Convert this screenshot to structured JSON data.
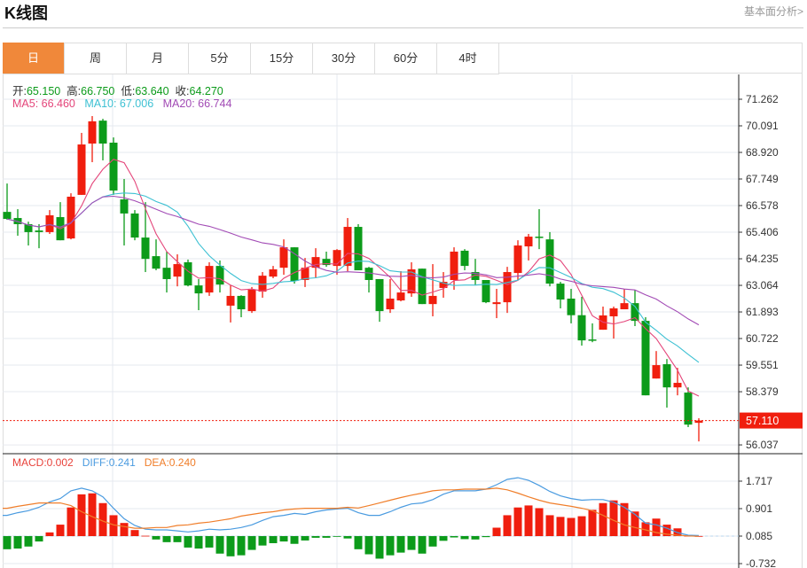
{
  "header": {
    "title": "K线图",
    "fundamental_link": "基本面分析>"
  },
  "tabs": [
    {
      "label": "日",
      "active": true
    },
    {
      "label": "周"
    },
    {
      "label": "月"
    },
    {
      "label": "5分"
    },
    {
      "label": "15分"
    },
    {
      "label": "30分"
    },
    {
      "label": "60分"
    },
    {
      "label": "4时"
    }
  ],
  "ohlc_info": {
    "open_label": "开:",
    "open": "65.150",
    "high_label": "高:",
    "high": "66.750",
    "low_label": "低:",
    "low": "63.640",
    "close_label": "收:",
    "close": "64.270"
  },
  "ma_info": {
    "ma5": "MA5: 66.460",
    "ma10": "MA10: 67.006",
    "ma20": "MA20: 66.744"
  },
  "macd_info": {
    "macd": "MACD:0.002",
    "diff": "DIFF:0.241",
    "dea": "DEA:0.240"
  },
  "colors": {
    "up": "#F01E0E",
    "down": "#0C9B1A",
    "accent": "#F0883A",
    "ma5": "#E4457A",
    "ma10": "#3EC1D3",
    "ma20": "#A24BB5",
    "diff": "#4A9BE0",
    "dea": "#F07E2A"
  },
  "chart_data": [
    {
      "type": "candlestick",
      "price_axis_ticks": [
        "71.262",
        "70.091",
        "68.920",
        "67.749",
        "66.578",
        "65.406",
        "64.235",
        "63.064",
        "61.893",
        "60.722",
        "59.551",
        "58.379",
        "56.037"
      ],
      "ylim": [
        56.037,
        71.262
      ],
      "last_price": "57.110",
      "moving_averages": [
        5,
        10,
        20
      ],
      "ohlc": [
        [
          66.3,
          67.55,
          65.95,
          65.99
        ],
        [
          66.03,
          66.42,
          65.25,
          65.76
        ],
        [
          65.76,
          65.87,
          64.82,
          65.41
        ],
        [
          65.48,
          65.76,
          64.7,
          65.41
        ],
        [
          65.41,
          66.38,
          65.33,
          66.15
        ],
        [
          66.07,
          66.73,
          65.05,
          65.05
        ],
        [
          65.13,
          67.12,
          65.09,
          66.97
        ],
        [
          67.05,
          69.78,
          67.05,
          69.27
        ],
        [
          69.31,
          70.52,
          68.49,
          70.29
        ],
        [
          70.32,
          70.4,
          68.57,
          69.31
        ],
        [
          69.35,
          69.58,
          67.05,
          67.24
        ],
        [
          66.85,
          67.75,
          64.82,
          66.23
        ],
        [
          66.23,
          66.38,
          65.05,
          65.17
        ],
        [
          65.17,
          66.73,
          63.65,
          64.23
        ],
        [
          64.35,
          65.09,
          63.73,
          63.8
        ],
        [
          63.84,
          64.55,
          62.75,
          63.34
        ],
        [
          63.45,
          64.43,
          63.02,
          64.0
        ],
        [
          64.08,
          64.2,
          63.02,
          63.06
        ],
        [
          63.06,
          63.34,
          61.97,
          62.71
        ],
        [
          62.75,
          64.08,
          62.6,
          63.92
        ],
        [
          63.92,
          64.16,
          62.75,
          63.1
        ],
        [
          62.17,
          63.06,
          61.43,
          62.6
        ],
        [
          62.6,
          62.63,
          61.66,
          62.01
        ],
        [
          61.93,
          62.99,
          61.85,
          62.87
        ],
        [
          62.79,
          63.65,
          62.52,
          63.49
        ],
        [
          63.45,
          63.92,
          63.38,
          63.77
        ],
        [
          63.84,
          65.09,
          63.53,
          64.74
        ],
        [
          64.74,
          64.74,
          63.14,
          63.26
        ],
        [
          63.3,
          64.27,
          62.99,
          63.84
        ],
        [
          63.84,
          64.7,
          63.38,
          64.31
        ],
        [
          64.23,
          64.55,
          63.88,
          63.96
        ],
        [
          63.92,
          64.66,
          63.53,
          64.62
        ],
        [
          63.92,
          66.03,
          63.69,
          65.64
        ],
        [
          65.64,
          65.76,
          63.73,
          63.73
        ],
        [
          63.84,
          63.88,
          62.75,
          63.3
        ],
        [
          63.34,
          63.34,
          61.46,
          61.93
        ],
        [
          62.01,
          63.34,
          61.85,
          62.48
        ],
        [
          62.4,
          63.69,
          62.36,
          62.75
        ],
        [
          62.71,
          64.08,
          62.56,
          63.77
        ],
        [
          63.8,
          63.8,
          62.24,
          62.24
        ],
        [
          62.24,
          64.0,
          61.7,
          62.6
        ],
        [
          62.95,
          63.65,
          62.52,
          63.22
        ],
        [
          63.3,
          64.74,
          62.87,
          64.55
        ],
        [
          64.59,
          64.66,
          63.73,
          63.92
        ],
        [
          63.65,
          64.23,
          63.06,
          63.3
        ],
        [
          63.3,
          63.3,
          62.28,
          62.32
        ],
        [
          62.24,
          62.91,
          61.62,
          62.32
        ],
        [
          62.32,
          63.88,
          61.85,
          63.65
        ],
        [
          63.61,
          65.05,
          63.3,
          64.82
        ],
        [
          64.78,
          65.33,
          64.16,
          65.21
        ],
        [
          65.21,
          66.42,
          64.66,
          65.17
        ],
        [
          65.09,
          65.41,
          63.02,
          63.14
        ],
        [
          63.14,
          63.22,
          62.05,
          62.44
        ],
        [
          62.48,
          62.91,
          61.39,
          61.75
        ],
        [
          61.75,
          62.56,
          60.41,
          60.64
        ],
        [
          60.68,
          61.39,
          60.56,
          60.64
        ],
        [
          61.11,
          62.13,
          61.11,
          61.74
        ],
        [
          61.7,
          62.13,
          60.72,
          62.05
        ],
        [
          62.01,
          62.91,
          62.01,
          62.28
        ],
        [
          62.28,
          62.87,
          61.27,
          61.5
        ],
        [
          61.5,
          61.66,
          58.22,
          58.22
        ],
        [
          58.96,
          60.17,
          58.96,
          59.55
        ],
        [
          59.59,
          59.82,
          57.68,
          58.57
        ],
        [
          58.57,
          59.43,
          58.22,
          58.77
        ],
        [
          58.34,
          58.57,
          56.82,
          56.93
        ],
        [
          57.01,
          57.21,
          56.19,
          57.11
        ]
      ]
    },
    {
      "type": "bar+line",
      "axis_ticks": [
        "1.717",
        "0.901",
        "0.085",
        "-0.732"
      ],
      "macd": [
        -0.39,
        -0.37,
        -0.31,
        -0.16,
        0.11,
        0.34,
        0.85,
        1.24,
        1.27,
        0.98,
        0.62,
        0.39,
        0.18,
        0.01,
        -0.1,
        -0.18,
        -0.18,
        -0.34,
        -0.37,
        -0.34,
        -0.52,
        -0.6,
        -0.57,
        -0.41,
        -0.28,
        -0.21,
        -0.16,
        -0.23,
        -0.13,
        -0.05,
        -0.05,
        -0.01,
        -0.07,
        -0.39,
        -0.54,
        -0.67,
        -0.57,
        -0.49,
        -0.41,
        -0.52,
        -0.31,
        -0.14,
        -0.04,
        -0.09,
        -0.1,
        -0.03,
        0.25,
        0.62,
        0.85,
        0.91,
        0.83,
        0.62,
        0.57,
        0.54,
        0.59,
        0.78,
        0.98,
        1.06,
        0.98,
        0.73,
        0.41,
        0.52,
        0.34,
        0.23,
        0.01,
        0.002
      ],
      "diff": [
        0.7,
        0.78,
        0.84,
        0.94,
        1.1,
        1.2,
        1.43,
        1.51,
        1.43,
        1.25,
        0.91,
        0.6,
        0.4,
        0.29,
        0.27,
        0.27,
        0.24,
        0.21,
        0.24,
        0.29,
        0.27,
        0.29,
        0.34,
        0.42,
        0.55,
        0.66,
        0.7,
        0.76,
        0.73,
        0.81,
        0.86,
        0.89,
        0.91,
        0.78,
        0.7,
        0.7,
        0.81,
        0.94,
        1.04,
        1.07,
        1.17,
        1.33,
        1.43,
        1.43,
        1.43,
        1.48,
        1.61,
        1.77,
        1.82,
        1.74,
        1.59,
        1.41,
        1.28,
        1.2,
        1.15,
        1.17,
        1.17,
        1.09,
        0.94,
        0.73,
        0.47,
        0.42,
        0.32,
        0.19,
        0.11,
        0.1
      ],
      "dea": [
        0.91,
        0.97,
        1.02,
        1.07,
        1.07,
        1.07,
        0.99,
        0.81,
        0.66,
        0.53,
        0.42,
        0.37,
        0.32,
        0.32,
        0.34,
        0.34,
        0.4,
        0.42,
        0.47,
        0.5,
        0.55,
        0.6,
        0.68,
        0.73,
        0.78,
        0.81,
        0.86,
        0.89,
        0.91,
        0.91,
        0.91,
        0.91,
        0.94,
        0.92,
        0.99,
        1.07,
        1.15,
        1.23,
        1.3,
        1.36,
        1.43,
        1.46,
        1.46,
        1.48,
        1.48,
        1.48,
        1.51,
        1.46,
        1.36,
        1.25,
        1.15,
        1.07,
        1.02,
        0.97,
        0.91,
        0.84,
        0.7,
        0.55,
        0.42,
        0.34,
        0.27,
        0.19,
        0.14,
        0.11,
        0.09,
        0.08
      ]
    }
  ]
}
